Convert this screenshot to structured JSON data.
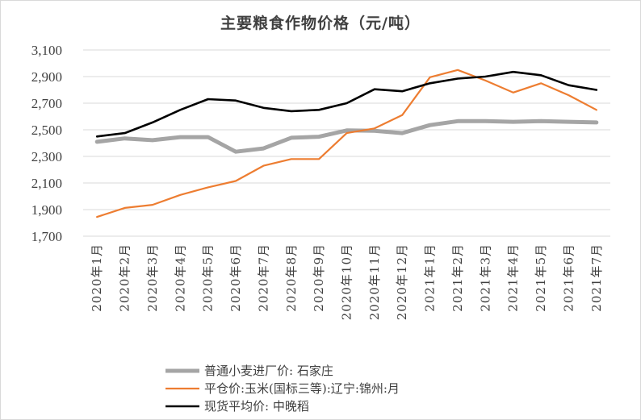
{
  "chart_data": {
    "type": "line",
    "title": "主要粮食作物价格（元/吨）",
    "xlabel": "",
    "ylabel": "",
    "ylim": [
      1700,
      3100
    ],
    "yticks": [
      1700,
      1900,
      2100,
      2300,
      2500,
      2700,
      2900,
      3100
    ],
    "ytick_labels": [
      "1,700",
      "1,900",
      "2,100",
      "2,300",
      "2,500",
      "2,700",
      "2,900",
      "3,100"
    ],
    "grid": "horizontal",
    "legend_position": "bottom",
    "categories": [
      "2020年1月",
      "2020年2月",
      "2020年3月",
      "2020年4月",
      "2020年5月",
      "2020年6月",
      "2020年7月",
      "2020年8月",
      "2020年9月",
      "2020年10月",
      "2020年11月",
      "2020年12月",
      "2021年1月",
      "2021年2月",
      "2021年3月",
      "2021年4月",
      "2021年5月",
      "2021年6月",
      "2021年7月"
    ],
    "series": [
      {
        "name": "普通小麦进厂价: 石家庄",
        "color": "#a5a5a5",
        "values": [
          2410,
          2435,
          2422,
          2445,
          2445,
          2335,
          2360,
          2440,
          2448,
          2495,
          2492,
          2475,
          2535,
          2565,
          2565,
          2560,
          2565,
          2560,
          2555
        ]
      },
      {
        "name": "平仓价:玉米(国标三等):辽宁:锦州:月",
        "color": "#ed7d31",
        "values": [
          1845,
          1913,
          1936,
          2010,
          2067,
          2115,
          2230,
          2280,
          2280,
          2475,
          2510,
          2610,
          2895,
          2950,
          2870,
          2780,
          2850,
          2760,
          2650
        ]
      },
      {
        "name": "现货平均价: 中晚稻",
        "color": "#000000",
        "values": [
          2450,
          2475,
          2555,
          2650,
          2730,
          2720,
          2665,
          2640,
          2650,
          2700,
          2805,
          2790,
          2850,
          2885,
          2900,
          2935,
          2910,
          2835,
          2800
        ]
      }
    ]
  }
}
